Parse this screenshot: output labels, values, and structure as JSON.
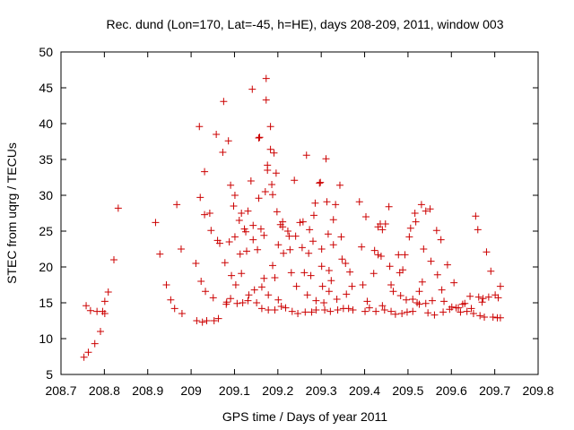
{
  "chart_data": {
    "type": "scatter",
    "title": "Rec. dund (Lon=170, Lat=-45, h=HE), days 208-209, 2011, window 003",
    "xlabel": "GPS time / Days of year 2011",
    "ylabel": "STEC from uqrg / TECUs",
    "xlim": [
      208.7,
      209.8
    ],
    "ylim": [
      5,
      50
    ],
    "xticks": [
      "208.7",
      "208.8",
      "208.9",
      "209",
      "209.1",
      "209.2",
      "209.3",
      "209.4",
      "209.5",
      "209.6",
      "209.7",
      "209.8"
    ],
    "yticks": [
      "5",
      "10",
      "15",
      "20",
      "25",
      "30",
      "35",
      "40",
      "45",
      "50"
    ],
    "grid": false,
    "marker": "+",
    "marker_color": "#cc0000",
    "points": [
      [
        208.753,
        7.4
      ],
      [
        208.758,
        14.6
      ],
      [
        208.763,
        8.1
      ],
      [
        208.768,
        13.9
      ],
      [
        208.778,
        9.3
      ],
      [
        208.783,
        13.8
      ],
      [
        208.791,
        11.0
      ],
      [
        208.796,
        13.8
      ],
      [
        208.801,
        13.5
      ],
      [
        208.801,
        15.2
      ],
      [
        208.809,
        16.5
      ],
      [
        208.822,
        21.0
      ],
      [
        208.832,
        28.2
      ],
      [
        208.918,
        26.2
      ],
      [
        208.928,
        21.8
      ],
      [
        208.943,
        17.5
      ],
      [
        208.953,
        15.4
      ],
      [
        208.962,
        14.2
      ],
      [
        208.967,
        28.7
      ],
      [
        208.977,
        22.5
      ],
      [
        208.979,
        13.5
      ],
      [
        209.011,
        20.5
      ],
      [
        209.013,
        12.5
      ],
      [
        209.019,
        39.6
      ],
      [
        209.021,
        29.7
      ],
      [
        209.023,
        18.0
      ],
      [
        209.026,
        12.3
      ],
      [
        209.031,
        33.3
      ],
      [
        209.031,
        27.3
      ],
      [
        209.033,
        16.6
      ],
      [
        209.036,
        12.5
      ],
      [
        209.043,
        27.5
      ],
      [
        209.046,
        25.1
      ],
      [
        209.051,
        15.7
      ],
      [
        209.053,
        12.5
      ],
      [
        209.058,
        38.5
      ],
      [
        209.061,
        23.7
      ],
      [
        209.066,
        23.3
      ],
      [
        209.063,
        12.8
      ],
      [
        209.073,
        36.0
      ],
      [
        209.075,
        43.1
      ],
      [
        209.078,
        20.6
      ],
      [
        209.081,
        14.8
      ],
      [
        209.082,
        15.1
      ],
      [
        209.086,
        37.6
      ],
      [
        209.088,
        23.5
      ],
      [
        209.091,
        31.4
      ],
      [
        209.093,
        18.8
      ],
      [
        209.091,
        15.6
      ],
      [
        209.098,
        28.5
      ],
      [
        209.101,
        30.0
      ],
      [
        209.101,
        24.2
      ],
      [
        209.103,
        17.5
      ],
      [
        209.106,
        14.9
      ],
      [
        209.111,
        26.5
      ],
      [
        209.113,
        21.8
      ],
      [
        209.116,
        27.5
      ],
      [
        209.116,
        19.1
      ],
      [
        209.119,
        15.0
      ],
      [
        209.123,
        25.3
      ],
      [
        209.126,
        24.9
      ],
      [
        209.128,
        22.2
      ],
      [
        209.131,
        27.8
      ],
      [
        209.131,
        15.3
      ],
      [
        209.133,
        16.1
      ],
      [
        209.138,
        32.0
      ],
      [
        209.141,
        44.8
      ],
      [
        209.143,
        25.8
      ],
      [
        209.143,
        23.8
      ],
      [
        209.146,
        16.8
      ],
      [
        209.151,
        15.0
      ],
      [
        209.153,
        22.4
      ],
      [
        209.156,
        29.6
      ],
      [
        209.156,
        38.0
      ],
      [
        209.158,
        38.1
      ],
      [
        209.161,
        25.3
      ],
      [
        209.163,
        17.2
      ],
      [
        209.163,
        14.2
      ],
      [
        209.168,
        24.4
      ],
      [
        209.168,
        18.4
      ],
      [
        209.171,
        30.5
      ],
      [
        209.173,
        46.3
      ],
      [
        209.173,
        43.3
      ],
      [
        209.176,
        34.2
      ],
      [
        209.176,
        33.5
      ],
      [
        209.178,
        16.1
      ],
      [
        209.178,
        14.0
      ],
      [
        209.183,
        36.4
      ],
      [
        209.183,
        39.6
      ],
      [
        209.186,
        31.5
      ],
      [
        209.188,
        30.1
      ],
      [
        209.188,
        20.2
      ],
      [
        209.191,
        35.9
      ],
      [
        209.193,
        18.5
      ],
      [
        209.193,
        14.0
      ],
      [
        209.196,
        33.1
      ],
      [
        209.198,
        27.7
      ],
      [
        209.201,
        23.1
      ],
      [
        209.201,
        15.4
      ],
      [
        209.206,
        25.9
      ],
      [
        209.208,
        14.5
      ],
      [
        209.211,
        26.3
      ],
      [
        209.211,
        25.6
      ],
      [
        209.213,
        21.9
      ],
      [
        209.218,
        14.3
      ],
      [
        209.223,
        25.0
      ],
      [
        209.226,
        24.3
      ],
      [
        209.228,
        22.4
      ],
      [
        209.231,
        19.2
      ],
      [
        209.233,
        13.8
      ],
      [
        209.238,
        32.1
      ],
      [
        209.241,
        24.3
      ],
      [
        209.243,
        17.3
      ],
      [
        209.246,
        13.5
      ],
      [
        209.251,
        26.2
      ],
      [
        209.256,
        22.7
      ],
      [
        209.258,
        26.3
      ],
      [
        209.261,
        19.2
      ],
      [
        209.263,
        13.7
      ],
      [
        209.266,
        35.6
      ],
      [
        209.268,
        16.1
      ],
      [
        209.271,
        21.9
      ],
      [
        209.273,
        25.2
      ],
      [
        209.276,
        18.8
      ],
      [
        209.278,
        13.7
      ],
      [
        209.281,
        23.6
      ],
      [
        209.283,
        27.2
      ],
      [
        209.286,
        28.9
      ],
      [
        209.288,
        15.3
      ],
      [
        209.288,
        14.0
      ],
      [
        209.296,
        31.7
      ],
      [
        209.298,
        31.8
      ],
      [
        209.301,
        22.5
      ],
      [
        209.301,
        20.1
      ],
      [
        209.303,
        17.3
      ],
      [
        209.306,
        15.0
      ],
      [
        209.308,
        14.0
      ],
      [
        209.311,
        35.1
      ],
      [
        209.313,
        29.1
      ],
      [
        209.316,
        24.6
      ],
      [
        209.318,
        19.5
      ],
      [
        209.318,
        16.6
      ],
      [
        209.321,
        13.8
      ],
      [
        209.323,
        18.1
      ],
      [
        209.328,
        26.6
      ],
      [
        209.328,
        23.1
      ],
      [
        209.333,
        28.7
      ],
      [
        209.336,
        15.5
      ],
      [
        209.338,
        14.0
      ],
      [
        209.343,
        31.4
      ],
      [
        209.346,
        24.2
      ],
      [
        209.348,
        21.1
      ],
      [
        209.351,
        14.2
      ],
      [
        209.356,
        20.5
      ],
      [
        209.358,
        16.2
      ],
      [
        209.363,
        14.2
      ],
      [
        209.366,
        19.3
      ],
      [
        209.371,
        17.3
      ],
      [
        209.373,
        14.0
      ],
      [
        209.388,
        29.1
      ],
      [
        209.393,
        22.8
      ],
      [
        209.396,
        17.5
      ],
      [
        209.401,
        13.8
      ],
      [
        209.403,
        27.0
      ],
      [
        209.406,
        15.2
      ],
      [
        209.411,
        14.3
      ],
      [
        209.421,
        19.1
      ],
      [
        209.423,
        22.3
      ],
      [
        209.426,
        13.8
      ],
      [
        209.431,
        21.7
      ],
      [
        209.431,
        25.6
      ],
      [
        209.436,
        26.0
      ],
      [
        209.438,
        21.5
      ],
      [
        209.441,
        14.6
      ],
      [
        209.441,
        25.2
      ],
      [
        209.446,
        14.0
      ],
      [
        209.448,
        26.0
      ],
      [
        209.456,
        28.4
      ],
      [
        209.458,
        20.1
      ],
      [
        209.461,
        17.5
      ],
      [
        209.461,
        13.8
      ],
      [
        209.466,
        16.6
      ],
      [
        209.471,
        13.4
      ],
      [
        209.478,
        21.7
      ],
      [
        209.481,
        19.2
      ],
      [
        209.483,
        16.0
      ],
      [
        209.486,
        13.5
      ],
      [
        209.488,
        19.6
      ],
      [
        209.493,
        21.7
      ],
      [
        209.496,
        15.4
      ],
      [
        209.498,
        13.7
      ],
      [
        209.503,
        24.2
      ],
      [
        209.506,
        25.4
      ],
      [
        209.511,
        15.5
      ],
      [
        209.511,
        13.8
      ],
      [
        209.516,
        27.5
      ],
      [
        209.518,
        26.3
      ],
      [
        209.521,
        15.0
      ],
      [
        209.526,
        16.6
      ],
      [
        209.526,
        14.8
      ],
      [
        209.531,
        28.7
      ],
      [
        209.533,
        17.9
      ],
      [
        209.536,
        22.5
      ],
      [
        209.541,
        27.8
      ],
      [
        209.541,
        14.9
      ],
      [
        209.546,
        13.6
      ],
      [
        209.551,
        28.1
      ],
      [
        209.553,
        20.8
      ],
      [
        209.556,
        15.3
      ],
      [
        209.561,
        13.3
      ],
      [
        209.566,
        25.1
      ],
      [
        209.568,
        18.9
      ],
      [
        209.576,
        23.8
      ],
      [
        209.578,
        16.8
      ],
      [
        209.581,
        13.7
      ],
      [
        209.583,
        15.2
      ],
      [
        209.591,
        20.3
      ],
      [
        209.596,
        14.1
      ],
      [
        209.601,
        14.4
      ],
      [
        209.606,
        17.8
      ],
      [
        209.611,
        14.3
      ],
      [
        209.616,
        14.3
      ],
      [
        209.621,
        13.7
      ],
      [
        209.626,
        14.8
      ],
      [
        209.631,
        14.9
      ],
      [
        209.636,
        13.8
      ],
      [
        209.643,
        15.9
      ],
      [
        209.646,
        14.2
      ],
      [
        209.651,
        13.5
      ],
      [
        209.656,
        27.1
      ],
      [
        209.661,
        25.2
      ],
      [
        209.663,
        15.8
      ],
      [
        209.666,
        13.2
      ],
      [
        209.671,
        15.1
      ],
      [
        209.673,
        15.6
      ],
      [
        209.676,
        13.0
      ],
      [
        209.681,
        22.1
      ],
      [
        209.686,
        15.8
      ],
      [
        209.691,
        19.4
      ],
      [
        209.696,
        13.0
      ],
      [
        209.701,
        16.1
      ],
      [
        209.706,
        12.9
      ],
      [
        209.708,
        15.7
      ],
      [
        209.713,
        17.3
      ],
      [
        209.713,
        12.9
      ]
    ]
  }
}
